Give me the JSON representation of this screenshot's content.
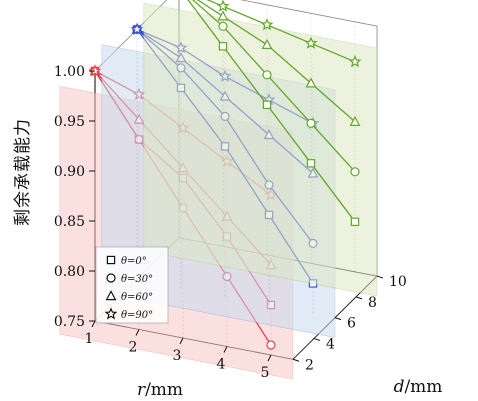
{
  "chart_data": {
    "type": "line",
    "projection": "3d",
    "zlabel": "剩余承载能力",
    "xlabel_var": "r",
    "xlabel_unit": "/mm",
    "ylabel_var": "d",
    "ylabel_unit": "/mm",
    "r_ticks": [
      "1",
      "2",
      "3",
      "4",
      "5"
    ],
    "d_ticks": [
      "2",
      "4",
      "6",
      "8",
      "10"
    ],
    "z_ticks": [
      "0.75",
      "0.80",
      "0.85",
      "0.90",
      "0.95",
      "1.00"
    ],
    "zlim": [
      0.75,
      1.0
    ],
    "planes": [
      {
        "d": 2,
        "color": "#e8414b",
        "fill": "#f7c7c7"
      },
      {
        "d": 6,
        "color": "#3f4fd6",
        "fill": "#c6dbef"
      },
      {
        "d": 10,
        "color": "#63a728",
        "fill": "#dde8c2"
      }
    ],
    "series": [
      {
        "name": "θ=0°",
        "marker": "square",
        "values": {
          "d2": [
            1.0,
            0.94,
            0.91,
            0.86,
            0.8
          ],
          "d6": [
            1.0,
            0.95,
            0.9,
            0.84,
            0.78
          ],
          "d10": [
            1.0,
            0.95,
            0.9,
            0.85,
            0.8
          ]
        }
      },
      {
        "name": "θ=30°",
        "marker": "circle",
        "values": {
          "d2": [
            1.0,
            0.94,
            0.88,
            0.82,
            0.76
          ],
          "d6": [
            1.0,
            0.97,
            0.93,
            0.87,
            0.82
          ],
          "d10": [
            1.0,
            0.97,
            0.93,
            0.89,
            0.85
          ]
        }
      },
      {
        "name": "θ=60°",
        "marker": "triangle",
        "values": {
          "d2": [
            1.0,
            0.96,
            0.92,
            0.88,
            0.84
          ],
          "d6": [
            1.0,
            0.98,
            0.95,
            0.92,
            0.89
          ],
          "d10": [
            1.0,
            0.98,
            0.96,
            0.93,
            0.9
          ]
        }
      },
      {
        "name": "θ=90°",
        "marker": "star",
        "values": {
          "d2": [
            1.0,
            0.985,
            0.96,
            0.935,
            0.91
          ],
          "d6": [
            1.0,
            0.99,
            0.97,
            0.955,
            0.94
          ],
          "d10": [
            1.0,
            0.99,
            0.98,
            0.97,
            0.96
          ]
        }
      }
    ]
  }
}
